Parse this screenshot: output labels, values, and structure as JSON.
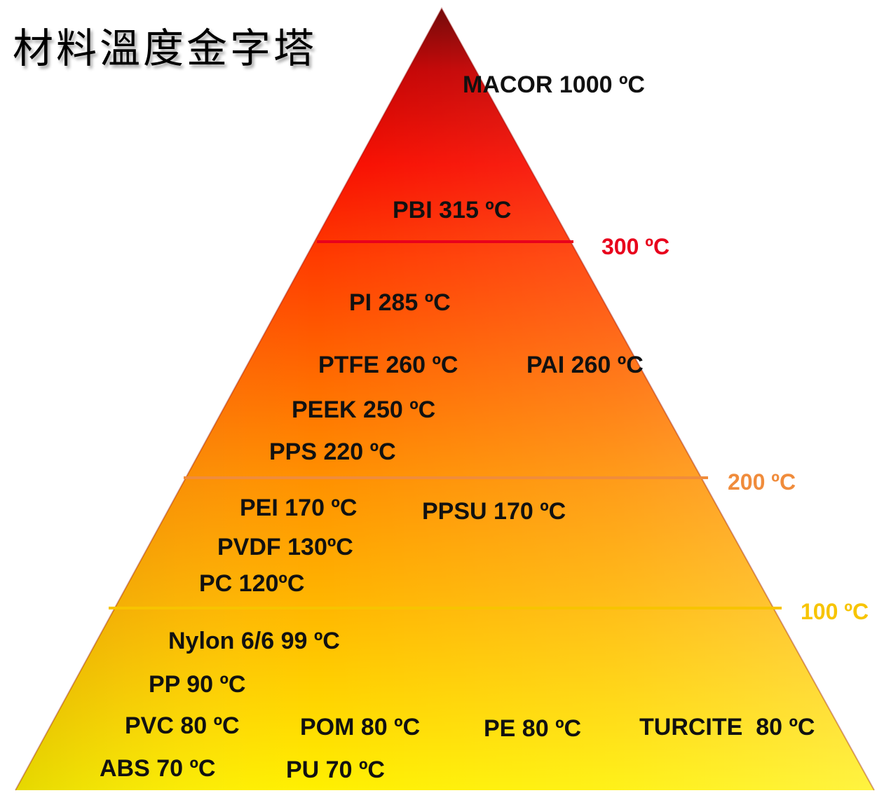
{
  "title": "材料溫度金字塔",
  "tiers": [
    {
      "label": "300 ºC",
      "color": "#e8001c"
    },
    {
      "label": "200 ºC",
      "color": "#f08c3c"
    },
    {
      "label": "100 ºC",
      "color": "#f7c400"
    }
  ],
  "materials": [
    {
      "label": "MACOR 1000 ºC",
      "ball": "red"
    },
    {
      "label": "PBI 315 ºC",
      "ball": "red"
    },
    {
      "label": "PI 285 ºC",
      "ball": "orange"
    },
    {
      "label": "PTFE 260 ºC",
      "ball": "orange"
    },
    {
      "label": "PAI 260 ºC",
      "ball": "orange"
    },
    {
      "label": "PEEK 250 ºC",
      "ball": "orange"
    },
    {
      "label": "PPS 220 ºC",
      "ball": "orange"
    },
    {
      "label": "PEI 170 ºC",
      "ball": "yellow"
    },
    {
      "label": "PPSU 170 ºC",
      "ball": "yellow"
    },
    {
      "label": "PVDF 130ºC",
      "ball": "yellow"
    },
    {
      "label": "PC 120ºC",
      "ball": "yellow"
    },
    {
      "label": "Nylon 6/6 99 ºC",
      "ball": "yellow"
    },
    {
      "label": "PP 90 ºC",
      "ball": "yellow"
    },
    {
      "label": "PVC 80 ºC",
      "ball": "yellow"
    },
    {
      "label": "POM 80 ºC",
      "ball": "yellow"
    },
    {
      "label": "PE 80 ºC",
      "ball": "yellow"
    },
    {
      "label": "TURCITE  80 ºC",
      "ball": "yellow"
    },
    {
      "label": "ABS 70 ºC",
      "ball": "yellow"
    },
    {
      "label": "PU 70 ºC",
      "ball": "yellow"
    }
  ]
}
